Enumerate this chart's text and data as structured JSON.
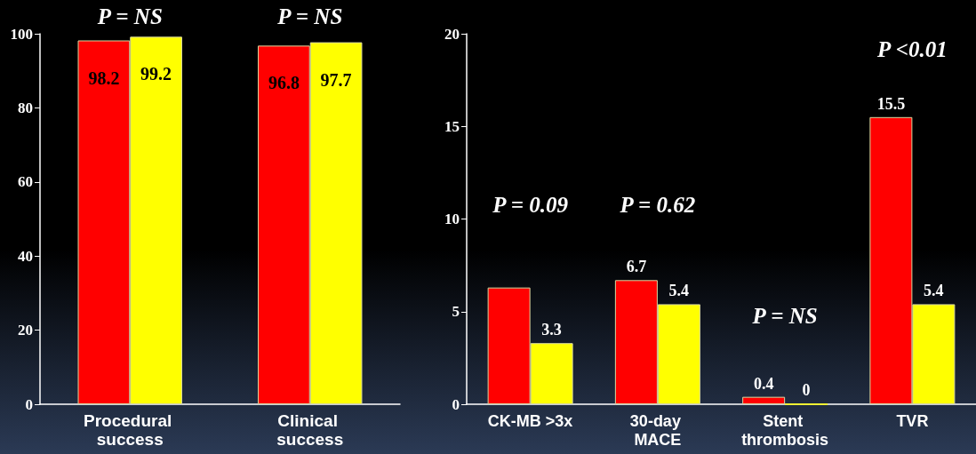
{
  "chart_data": [
    {
      "type": "bar",
      "categories": [
        "Procedural success",
        "Clinical success"
      ],
      "series": [
        {
          "color": "#ff0000",
          "values": [
            98.2,
            96.8
          ]
        },
        {
          "color": "#ffff00",
          "values": [
            99.2,
            97.7
          ]
        }
      ],
      "ylim": [
        0,
        100
      ],
      "yticks": [
        0,
        20,
        40,
        60,
        80,
        100
      ],
      "grid": false,
      "data_labels": true,
      "annotations": [
        "P = NS",
        "P = NS"
      ]
    },
    {
      "type": "bar",
      "categories": [
        "CK-MB >3x",
        "30-day MACE",
        "Stent thrombosis",
        "TVR"
      ],
      "series": [
        {
          "color": "#ff0000",
          "values": [
            6.3,
            6.7,
            0.4,
            15.5
          ],
          "value_labels": [
            null,
            "6.7",
            "0.4",
            "15.5"
          ]
        },
        {
          "color": "#ffff00",
          "values": [
            3.3,
            5.4,
            0,
            5.4
          ],
          "value_labels": [
            "3.3",
            "5.4",
            "0",
            "5.4"
          ]
        }
      ],
      "ylim": [
        0,
        20
      ],
      "yticks": [
        0,
        5,
        10,
        15,
        20
      ],
      "grid": false,
      "annotations": [
        "P = 0.09",
        "P = 0.62",
        "P = NS",
        "P <0.01"
      ]
    }
  ]
}
